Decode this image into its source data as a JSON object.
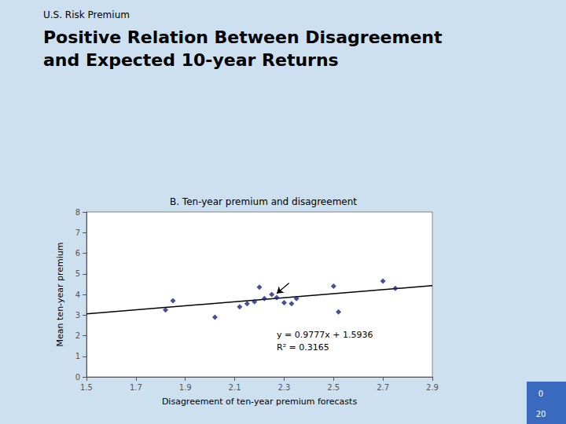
{
  "chart_data": {
    "type": "scatter",
    "subtitle": "U.S. Risk Premium",
    "title": "Positive Relation Between Disagreement\nand Expected 10-year Returns",
    "panel_title": "B. Ten-year premium and disagreement",
    "xlabel": "Disagreement of ten-year premium forecasts",
    "ylabel": "Mean ten-year premium",
    "series": [
      {
        "type": "scatter",
        "marker": "diamond",
        "color": "#1a237e",
        "x": [
          1.82,
          1.85,
          2.02,
          2.12,
          2.15,
          2.18,
          2.2,
          2.22,
          2.25,
          2.27,
          2.3,
          2.33,
          2.35,
          2.5,
          2.52,
          2.7,
          2.75
        ],
        "values": [
          3.25,
          3.7,
          2.9,
          3.4,
          3.55,
          3.65,
          4.35,
          3.8,
          4.0,
          3.85,
          3.6,
          3.55,
          3.8,
          4.4,
          3.15,
          4.65,
          4.3
        ]
      },
      {
        "type": "line",
        "line_style": "solid",
        "color": "#000000",
        "x": [
          1.5,
          2.9
        ],
        "values": [
          3.06015,
          4.42893
        ]
      }
    ],
    "annotations": [
      "y = 0.9777x + 1.5936",
      "R² = 0.3165"
    ],
    "arrow": {
      "x": [
        2.32,
        2.27
      ],
      "y": [
        4.55,
        4.05
      ]
    },
    "tab_labels": [
      "0",
      "20"
    ],
    "xlim": [
      1.5,
      2.9
    ],
    "ylim": [
      0,
      8
    ],
    "xticks": [
      1.5,
      1.7,
      1.9,
      2.1,
      2.3,
      2.5,
      2.7,
      2.9
    ],
    "yticks": [
      0,
      1,
      2,
      3,
      4,
      5,
      6,
      7,
      8
    ],
    "grid": false
  }
}
